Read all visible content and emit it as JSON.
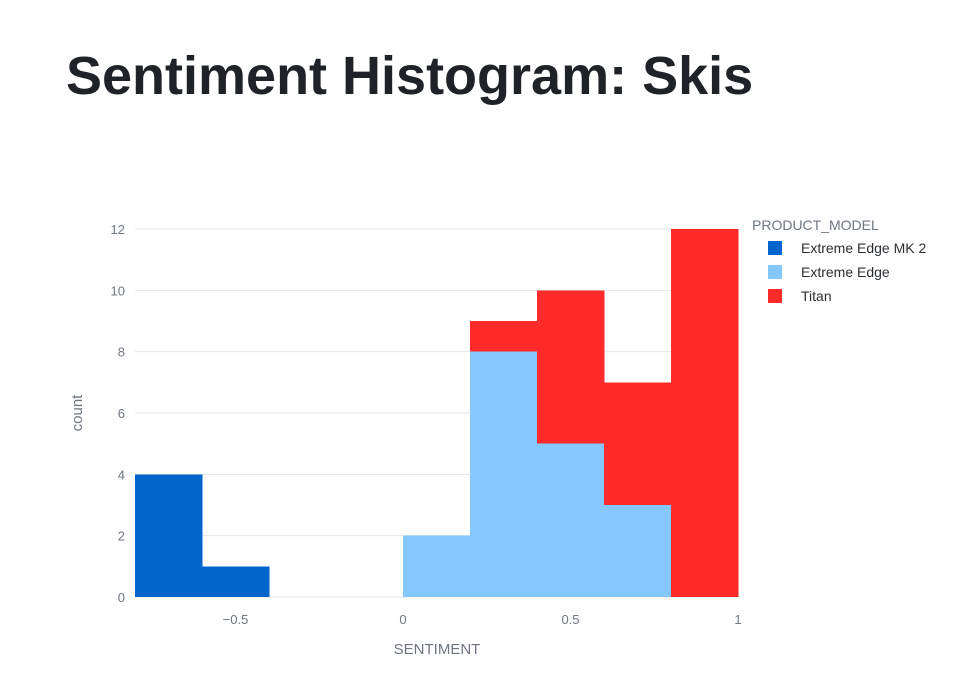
{
  "title": "Sentiment Histogram: Skis",
  "chart_data": {
    "type": "bar",
    "stacked": true,
    "title": "Sentiment Histogram: Skis",
    "xlabel": "SENTIMENT",
    "ylabel": "count",
    "xlim": [
      -0.8,
      1.0
    ],
    "ylim": [
      0,
      12
    ],
    "x_ticks": [
      {
        "value": -0.5,
        "label": "−0.5"
      },
      {
        "value": 0,
        "label": "0"
      },
      {
        "value": 0.5,
        "label": "0.5"
      },
      {
        "value": 1,
        "label": "1"
      }
    ],
    "y_ticks": [
      0,
      2,
      4,
      6,
      8,
      10,
      12
    ],
    "grid": "horizontal",
    "legend": {
      "title": "PRODUCT_MODEL",
      "placement": "right"
    },
    "bins": [
      [
        -0.8,
        -0.6
      ],
      [
        -0.6,
        -0.4
      ],
      [
        -0.4,
        -0.2
      ],
      [
        -0.2,
        0.0
      ],
      [
        0.0,
        0.2
      ],
      [
        0.2,
        0.4
      ],
      [
        0.4,
        0.6
      ],
      [
        0.6,
        0.8
      ],
      [
        0.8,
        1.0
      ]
    ],
    "series": [
      {
        "name": "Extreme Edge MK 2",
        "color": "#0066cc",
        "values": [
          4,
          1,
          0,
          0,
          0,
          0,
          0,
          0,
          0
        ]
      },
      {
        "name": "Extreme Edge",
        "color": "#85c8fd",
        "values": [
          0,
          0,
          0,
          0,
          2,
          8,
          5,
          3,
          0
        ]
      },
      {
        "name": "Titan",
        "color": "#ff2b2b",
        "values": [
          0,
          0,
          0,
          0,
          0,
          1,
          5,
          4,
          12
        ]
      }
    ]
  }
}
